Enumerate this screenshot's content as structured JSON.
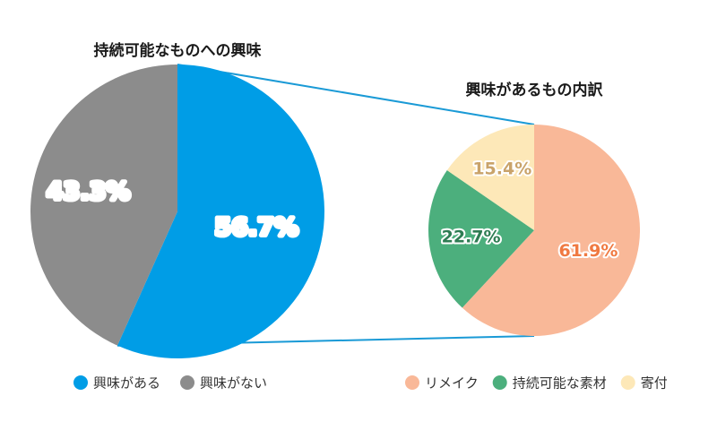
{
  "chart_data": [
    {
      "type": "pie",
      "title": "持続可能なものへの興味",
      "categories": [
        "興味がある",
        "興味がない"
      ],
      "values": [
        56.7,
        43.3
      ],
      "labels": [
        "56.7%",
        "43.3%"
      ],
      "colors": [
        "#009de6",
        "#8c8c8c"
      ],
      "legend": "bottom-left"
    },
    {
      "type": "pie",
      "title": "興味があるもの内訳",
      "categories": [
        "リメイク",
        "持続可能な素材",
        "寄付"
      ],
      "values": [
        61.9,
        22.7,
        15.4
      ],
      "labels": [
        "61.9%",
        "22.7%",
        "15.4%"
      ],
      "colors": [
        "#f9b898",
        "#4caf7d",
        "#fde8b8"
      ],
      "label_colors": [
        "#f07a42",
        "#2e7d53",
        "#c9a36a"
      ],
      "legend": "bottom-right"
    }
  ]
}
